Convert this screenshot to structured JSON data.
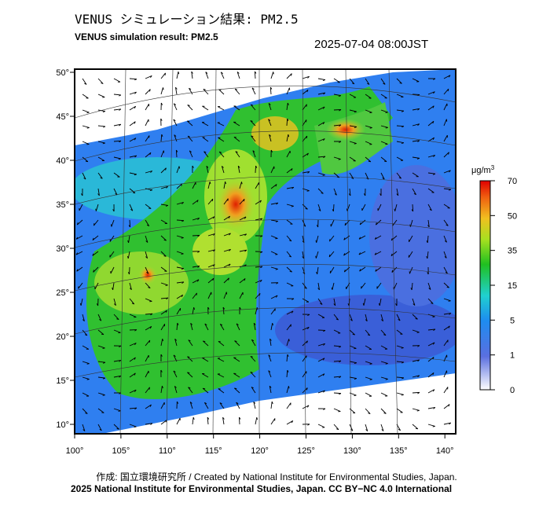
{
  "header": {
    "title": "VENUS シミュレーション結果: PM2.5",
    "subtitle": "VENUS simulation result: PM2.5",
    "timestamp": "2025-07-04 08:00JST"
  },
  "map": {
    "lat_labels": [
      "50°",
      "45°",
      "40°",
      "35°",
      "30°",
      "25°",
      "20°",
      "15°",
      "10°"
    ],
    "lon_labels": [
      "100°",
      "105°",
      "110°",
      "115°",
      "120°",
      "125°",
      "130°",
      "135°",
      "140°"
    ]
  },
  "colorbar": {
    "unit": "μg/m",
    "unit_sup": "3",
    "ticks": [
      70,
      50,
      35,
      15,
      5,
      1,
      0
    ]
  },
  "footer": {
    "credit": "作成: 国立環境研究所 / Created by National Institute for Environmental Studies, Japan.",
    "license": "2025 National Institute for Environmental Studies, Japan. CC BY−NC 4.0 International"
  }
}
